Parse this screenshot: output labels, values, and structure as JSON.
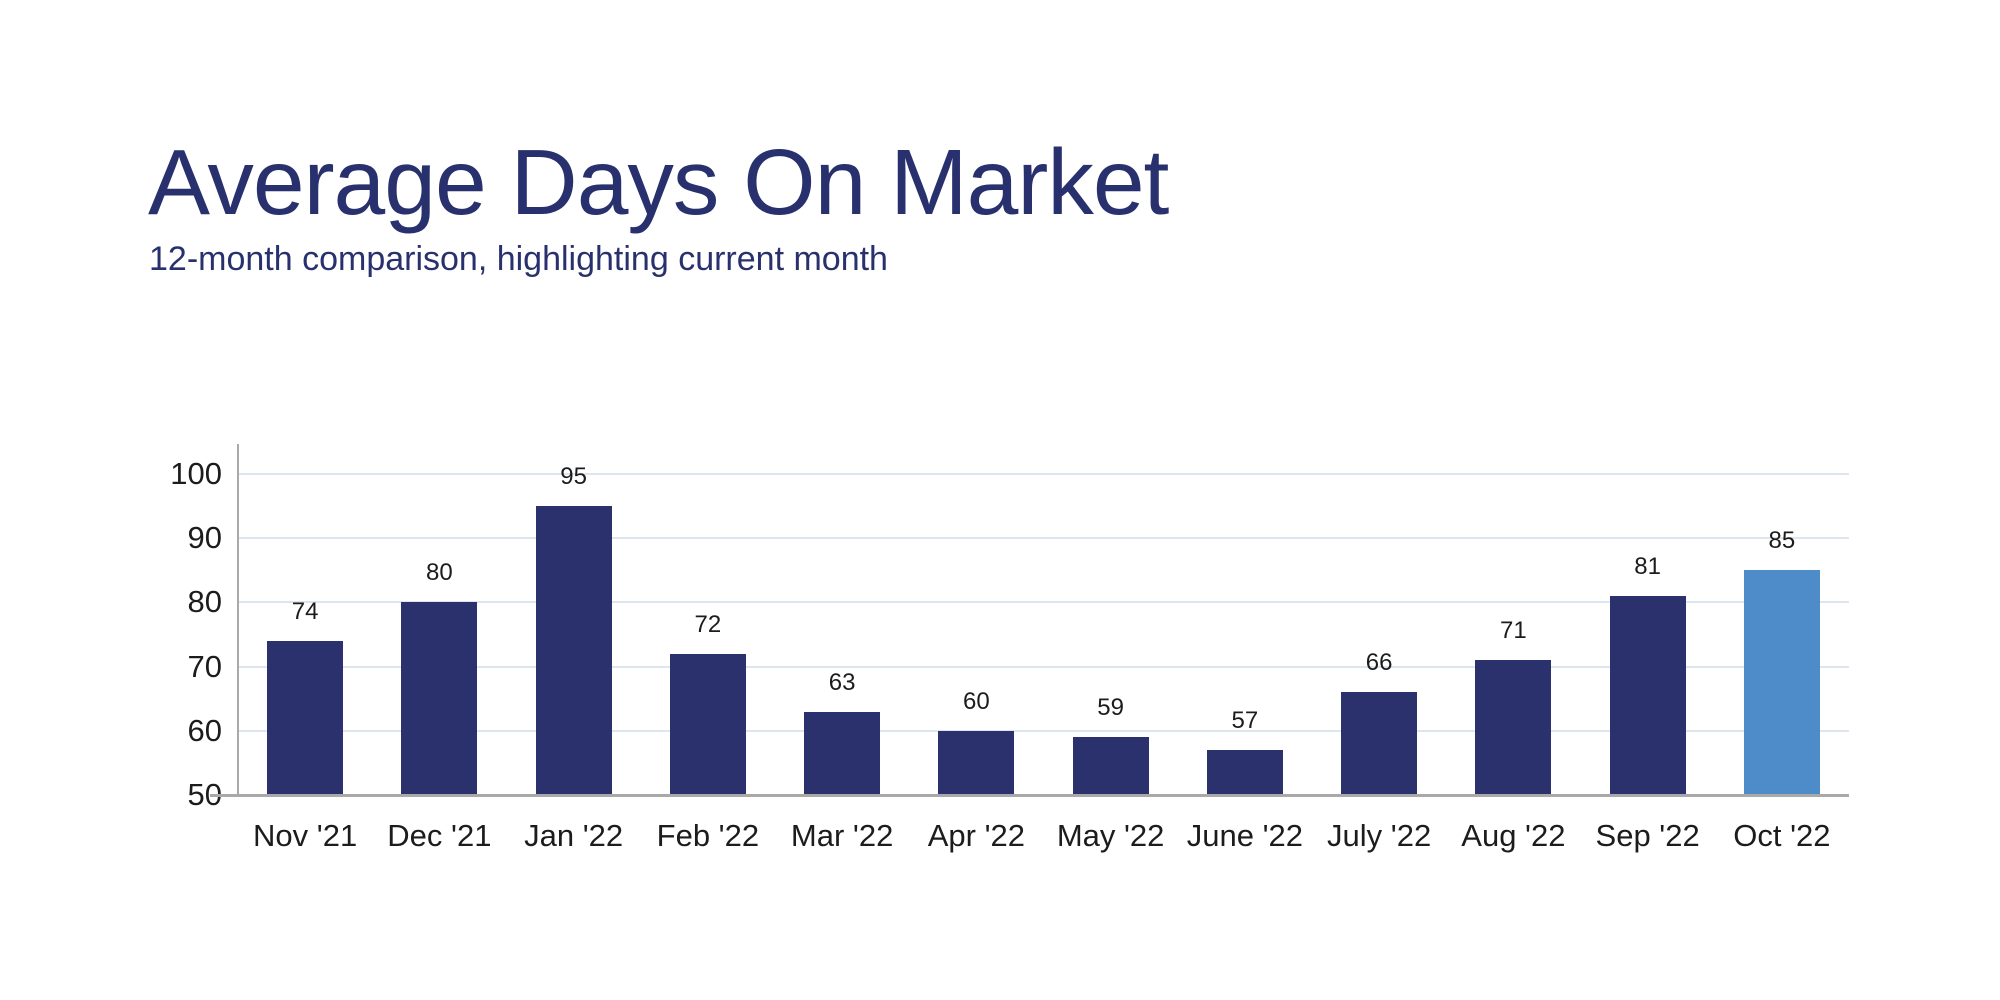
{
  "header": {
    "title": "Average Days On Market",
    "subtitle": "12-month comparison, highlighting current month",
    "title_color": "#28316e"
  },
  "chart_data": {
    "type": "bar",
    "title": "Average Days On Market",
    "subtitle": "12-month comparison, highlighting current month",
    "categories": [
      "Nov '21",
      "Dec '21",
      "Jan '22",
      "Feb '22",
      "Mar '22",
      "Apr '22",
      "May '22",
      "June '22",
      "July '22",
      "Aug '22",
      "Sep '22",
      "Oct '22"
    ],
    "values": [
      74,
      80,
      95,
      72,
      63,
      60,
      59,
      57,
      66,
      71,
      81,
      85
    ],
    "value_labels_shown": true,
    "highlight_index": 11,
    "highlight_category": "Oct '22",
    "highlight_meaning": "current month",
    "xlabel": "",
    "ylabel": "",
    "ylim": [
      50,
      100
    ],
    "yticks": [
      50,
      60,
      70,
      80,
      90,
      100
    ],
    "grid": true,
    "legend_position": "none",
    "colors": {
      "bar": "#2a316c",
      "highlight_bar": "#4d8cc8",
      "gridline": "#dde5ef",
      "axis": "#a9a9a9",
      "tick_text": "#1c1c1c",
      "value_text": "#1c1c1c"
    }
  }
}
